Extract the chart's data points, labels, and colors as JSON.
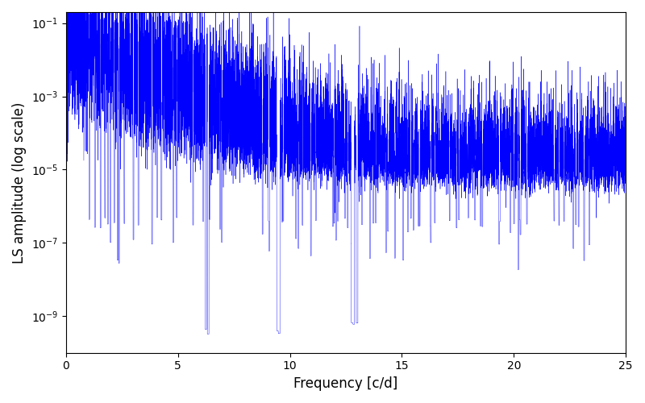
{
  "xlabel": "Frequency [c/d]",
  "ylabel": "LS amplitude (log scale)",
  "xlim": [
    0,
    25
  ],
  "ylim": [
    1e-10,
    0.2
  ],
  "line_color": "#0000ff",
  "line_width": 0.3,
  "background_color": "#ffffff",
  "yscale": "log",
  "seed": 7,
  "n_points": 12000,
  "freq_max": 25.0,
  "figsize": [
    8.0,
    5.0
  ],
  "dpi": 100,
  "yticks": [
    1e-09,
    1e-07,
    1e-05,
    0.001,
    0.1
  ],
  "xticks": [
    0,
    5,
    10,
    15,
    20,
    25
  ]
}
